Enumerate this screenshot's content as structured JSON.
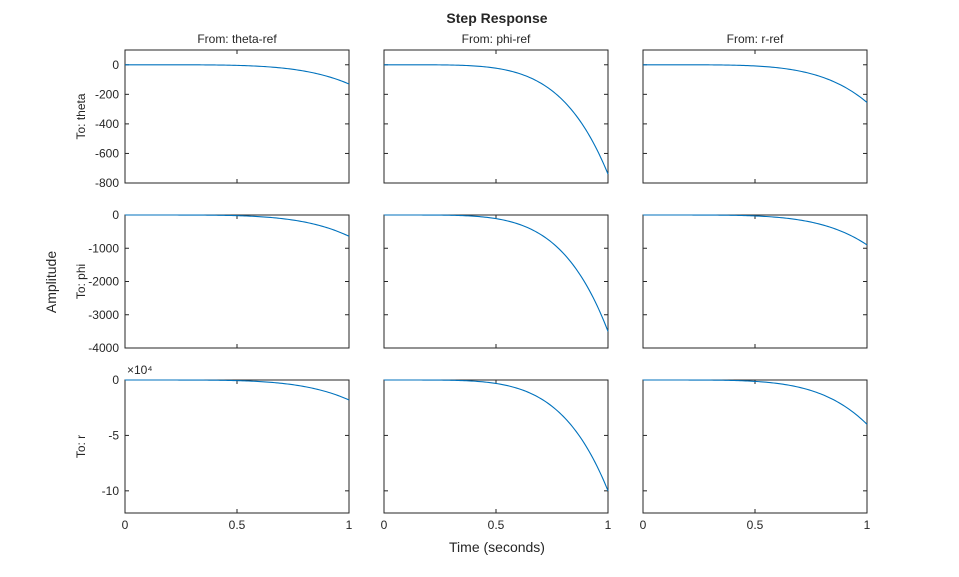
{
  "chart_data": {
    "type": "line",
    "title": "Step Response",
    "xlabel": "Time (seconds)",
    "ylabel": "Amplitude",
    "line_color": "#0072BD",
    "column_titles": [
      "From: theta-ref",
      "From: phi-ref",
      "From: r-ref"
    ],
    "row_labels": [
      "To: theta",
      "To: phi",
      "To: r"
    ],
    "xlim": [
      0,
      1
    ],
    "x_ticks": [
      "0",
      "0.5",
      "1"
    ],
    "rows": [
      {
        "ylim": [
          -800,
          100
        ],
        "y_ticks": [
          0,
          -200,
          -400,
          -600,
          -800
        ],
        "y_tick_labels": [
          "0",
          "-200",
          "-400",
          "-600",
          "-800"
        ],
        "exponent_label": "",
        "final_values": [
          -130,
          -740,
          -255
        ]
      },
      {
        "ylim": [
          -4000,
          0
        ],
        "y_ticks": [
          0,
          -1000,
          -2000,
          -3000,
          -4000
        ],
        "y_tick_labels": [
          "0",
          "-1000",
          "-2000",
          "-3000",
          "-4000"
        ],
        "exponent_label": "",
        "final_values": [
          -640,
          -3500,
          -900
        ]
      },
      {
        "ylim": [
          -120000,
          0
        ],
        "y_ticks": [
          0,
          -50000,
          -100000
        ],
        "y_tick_labels": [
          "0",
          "-5",
          "-10"
        ],
        "exponent_label": "×10⁴",
        "final_values": [
          -18000,
          -100000,
          -40000
        ]
      }
    ],
    "curve_shape_exponent": 5,
    "grid": false
  }
}
